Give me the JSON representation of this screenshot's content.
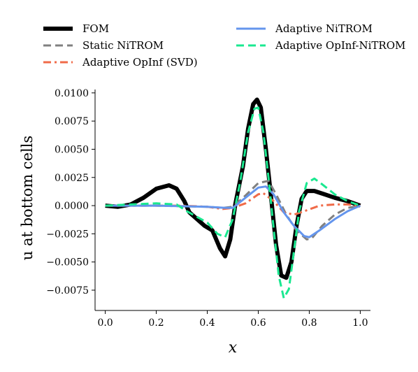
{
  "chart_data": {
    "type": "line",
    "title": "",
    "xlabel": "x",
    "ylabel": "u at bottom cells",
    "xlim": [
      -0.04,
      1.04
    ],
    "ylim": [
      -0.0093,
      0.0103
    ],
    "xticks": [
      0.0,
      0.2,
      0.4,
      0.6,
      0.8,
      1.0
    ],
    "xtick_labels": [
      "0.0",
      "0.2",
      "0.4",
      "0.6",
      "0.8",
      "1.0"
    ],
    "yticks": [
      0.01,
      0.0075,
      0.005,
      0.0025,
      0.0,
      -0.0025,
      -0.005,
      -0.0075
    ],
    "ytick_labels": [
      "0.0100",
      "0.0075",
      "0.0050",
      "0.0025",
      "0.0000",
      "−0.0025",
      "−0.0050",
      "−0.0075"
    ],
    "grid": false,
    "legend_position": "top",
    "series": [
      {
        "name": "FOM",
        "color": "#000000",
        "style": "solid",
        "points": [
          [
            0.0,
            0.0
          ],
          [
            0.05,
            -0.0001
          ],
          [
            0.1,
            0.0001
          ],
          [
            0.15,
            0.0007
          ],
          [
            0.2,
            0.0015
          ],
          [
            0.25,
            0.0018
          ],
          [
            0.28,
            0.0015
          ],
          [
            0.31,
            0.0004
          ],
          [
            0.33,
            -0.0006
          ],
          [
            0.36,
            -0.0012
          ],
          [
            0.39,
            -0.0018
          ],
          [
            0.42,
            -0.0022
          ],
          [
            0.45,
            -0.0038
          ],
          [
            0.47,
            -0.0045
          ],
          [
            0.49,
            -0.003
          ],
          [
            0.51,
            0.0001
          ],
          [
            0.54,
            0.0035
          ],
          [
            0.56,
            0.0068
          ],
          [
            0.58,
            0.009
          ],
          [
            0.595,
            0.0094
          ],
          [
            0.61,
            0.0087
          ],
          [
            0.63,
            0.005
          ],
          [
            0.65,
            0.0008
          ],
          [
            0.67,
            -0.0035
          ],
          [
            0.69,
            -0.0062
          ],
          [
            0.71,
            -0.0064
          ],
          [
            0.73,
            -0.005
          ],
          [
            0.75,
            -0.0018
          ],
          [
            0.77,
            0.0006
          ],
          [
            0.79,
            0.0013
          ],
          [
            0.82,
            0.0013
          ],
          [
            0.86,
            0.001
          ],
          [
            0.9,
            0.0007
          ],
          [
            0.95,
            0.0004
          ],
          [
            1.0,
            0.0
          ]
        ]
      },
      {
        "name": "Static NiTROM",
        "color": "#808080",
        "style": "dashed",
        "points": [
          [
            0.0,
            0.0
          ],
          [
            0.2,
            0.0
          ],
          [
            0.4,
            -0.0001
          ],
          [
            0.46,
            -0.0002
          ],
          [
            0.5,
            -0.0001
          ],
          [
            0.55,
            0.0009
          ],
          [
            0.6,
            0.002
          ],
          [
            0.64,
            0.0022
          ],
          [
            0.67,
            0.001
          ],
          [
            0.71,
            -0.0008
          ],
          [
            0.75,
            -0.0022
          ],
          [
            0.79,
            -0.003
          ],
          [
            0.81,
            -0.0029
          ],
          [
            0.85,
            -0.0018
          ],
          [
            0.9,
            -0.0008
          ],
          [
            0.95,
            -0.0002
          ],
          [
            1.0,
            0.0
          ]
        ]
      },
      {
        "name": "Adaptive OpInf (SVD)",
        "color": "#f06b49",
        "style": "dashdot",
        "points": [
          [
            0.0,
            0.0
          ],
          [
            0.2,
            0.0
          ],
          [
            0.3,
            0.0
          ],
          [
            0.4,
            -0.0001
          ],
          [
            0.46,
            -0.0003
          ],
          [
            0.5,
            -0.0002
          ],
          [
            0.55,
            0.0002
          ],
          [
            0.6,
            0.001
          ],
          [
            0.62,
            0.0011
          ],
          [
            0.66,
            0.0004
          ],
          [
            0.7,
            -0.0006
          ],
          [
            0.74,
            -0.0008
          ],
          [
            0.78,
            -0.0005
          ],
          [
            0.84,
            0.0
          ],
          [
            0.9,
            0.0001
          ],
          [
            0.95,
            0.0001
          ],
          [
            1.0,
            0.0
          ]
        ]
      },
      {
        "name": "Adaptive NiTROM",
        "color": "#6495ed",
        "style": "solid",
        "points": [
          [
            0.0,
            0.0
          ],
          [
            0.2,
            0.0
          ],
          [
            0.4,
            -0.0001
          ],
          [
            0.47,
            -0.0002
          ],
          [
            0.5,
            -0.0002
          ],
          [
            0.55,
            0.0007
          ],
          [
            0.6,
            0.0016
          ],
          [
            0.63,
            0.0017
          ],
          [
            0.66,
            0.001
          ],
          [
            0.7,
            -0.0006
          ],
          [
            0.74,
            -0.0018
          ],
          [
            0.78,
            -0.0027
          ],
          [
            0.8,
            -0.0028
          ],
          [
            0.84,
            -0.0022
          ],
          [
            0.9,
            -0.0012
          ],
          [
            0.95,
            -0.0005
          ],
          [
            1.0,
            0.0
          ]
        ]
      },
      {
        "name": "Adaptive OpInf-NiTROM",
        "color": "#1ae890",
        "style": "dashed",
        "points": [
          [
            0.0,
            0.0
          ],
          [
            0.1,
            0.0001
          ],
          [
            0.2,
            0.0002
          ],
          [
            0.28,
            0.0001
          ],
          [
            0.32,
            -0.0005
          ],
          [
            0.36,
            -0.001
          ],
          [
            0.4,
            -0.0015
          ],
          [
            0.44,
            -0.0025
          ],
          [
            0.47,
            -0.0028
          ],
          [
            0.5,
            -0.0012
          ],
          [
            0.53,
            0.0022
          ],
          [
            0.56,
            0.0065
          ],
          [
            0.585,
            0.0086
          ],
          [
            0.6,
            0.0087
          ],
          [
            0.62,
            0.0065
          ],
          [
            0.64,
            0.0025
          ],
          [
            0.66,
            -0.002
          ],
          [
            0.68,
            -0.0062
          ],
          [
            0.7,
            -0.0082
          ],
          [
            0.72,
            -0.0074
          ],
          [
            0.74,
            -0.004
          ],
          [
            0.76,
            -0.0005
          ],
          [
            0.79,
            0.002
          ],
          [
            0.82,
            0.0024
          ],
          [
            0.85,
            0.0019
          ],
          [
            0.9,
            0.001
          ],
          [
            0.95,
            0.0004
          ],
          [
            1.0,
            0.0
          ]
        ]
      }
    ]
  }
}
